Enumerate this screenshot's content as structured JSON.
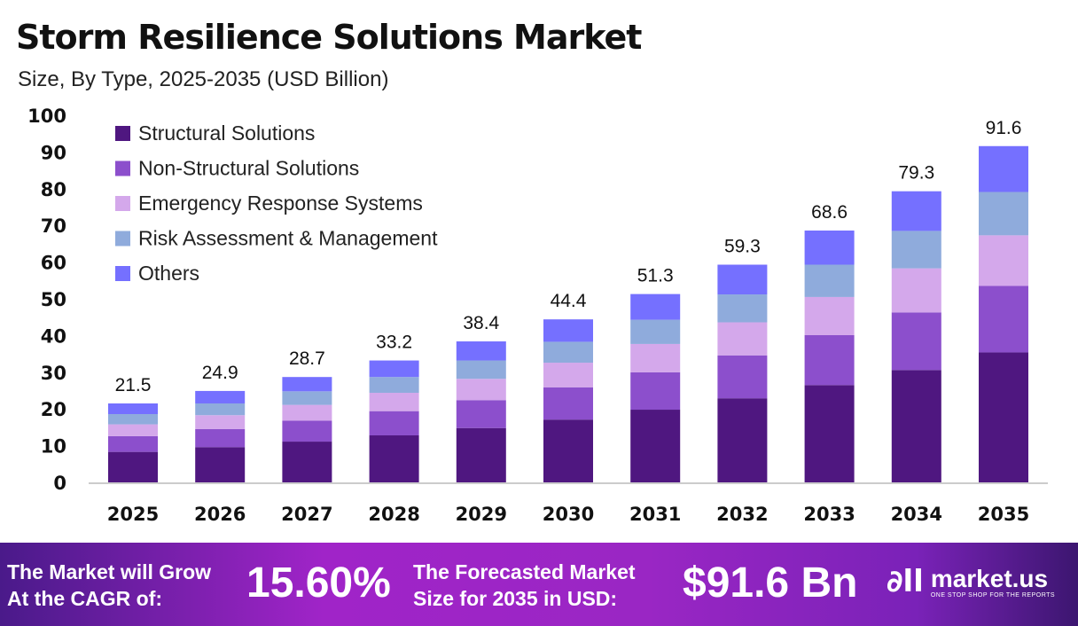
{
  "chart_data": {
    "type": "bar",
    "stacked": true,
    "title": "Storm Resilience Solutions Market",
    "subtitle": "Size, By Type, 2025-2035 (USD Billion)",
    "categories": [
      "2025",
      "2026",
      "2027",
      "2028",
      "2029",
      "2030",
      "2031",
      "2032",
      "2033",
      "2034",
      "2035"
    ],
    "totals": [
      21.5,
      24.9,
      28.7,
      33.2,
      38.4,
      44.4,
      51.3,
      59.3,
      68.6,
      79.3,
      91.6
    ],
    "series": [
      {
        "name": "Structural Solutions",
        "color": "#4f1780",
        "values": [
          8.3,
          9.6,
          11.1,
          12.8,
          14.8,
          17.1,
          19.8,
          22.9,
          26.5,
          30.6,
          35.4
        ]
      },
      {
        "name": "Non-Structural Solutions",
        "color": "#8c4fcc",
        "values": [
          4.3,
          4.9,
          5.7,
          6.6,
          7.6,
          8.8,
          10.2,
          11.7,
          13.6,
          15.7,
          18.1
        ]
      },
      {
        "name": "Emergency Response Systems",
        "color": "#d4a8eb",
        "values": [
          3.2,
          3.8,
          4.3,
          5.0,
          5.8,
          6.7,
          7.7,
          9.0,
          10.4,
          12.0,
          13.8
        ]
      },
      {
        "name": "Risk Assessment & Management",
        "color": "#8fabdc",
        "values": [
          2.8,
          3.2,
          3.7,
          4.3,
          5.0,
          5.7,
          6.6,
          7.6,
          8.8,
          10.2,
          11.8
        ]
      },
      {
        "name": "Others",
        "color": "#7570ff",
        "values": [
          2.9,
          3.4,
          3.9,
          4.5,
          5.2,
          6.1,
          7.0,
          8.1,
          9.3,
          10.8,
          12.5
        ]
      }
    ],
    "yticks": [
      "0",
      "10",
      "20",
      "30",
      "40",
      "50",
      "60",
      "70",
      "80",
      "90",
      "100"
    ],
    "ylim": [
      0,
      100
    ],
    "grid": false,
    "legend": "top-left"
  },
  "footer": {
    "cagr_label_1": "The Market will Grow",
    "cagr_label_2": "At the CAGR of:",
    "cagr_value": "15.60%",
    "forecast_label_1": "The Forecasted Market",
    "forecast_label_2": "Size for 2035 in USD:",
    "forecast_value": "$91.6 Bn",
    "brand": "market.us",
    "brand_tagline": "ONE STOP SHOP FOR THE REPORTS"
  }
}
